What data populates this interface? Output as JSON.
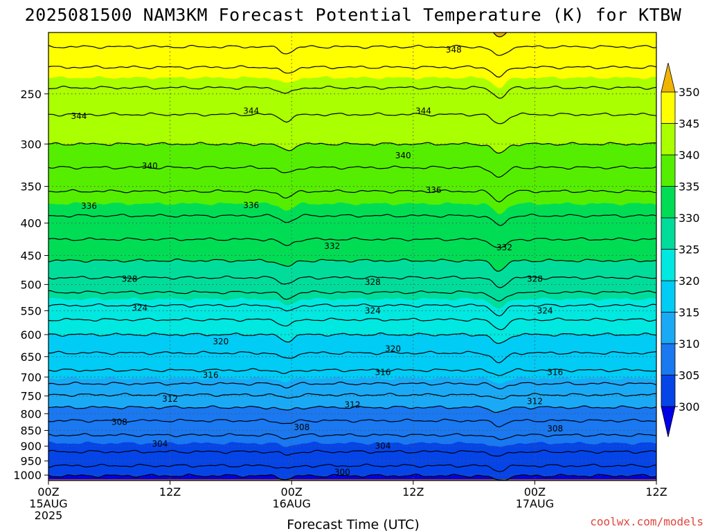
{
  "chart_data": {
    "type": "contour",
    "title": "2025081500 NAM3KM Forecast Potential Temperature (K) for KTBW",
    "xlabel": "Forecast Time (UTC)",
    "ylabel": "",
    "x_ticks": [
      {
        "hour": 0,
        "l1": "00Z",
        "l2": "15AUG",
        "l3": "2025"
      },
      {
        "hour": 12,
        "l1": "12Z",
        "l2": "",
        "l3": ""
      },
      {
        "hour": 24,
        "l1": "00Z",
        "l2": "16AUG",
        "l3": ""
      },
      {
        "hour": 36,
        "l1": "12Z",
        "l2": "",
        "l3": ""
      },
      {
        "hour": 48,
        "l1": "00Z",
        "l2": "17AUG",
        "l3": ""
      },
      {
        "hour": 60,
        "l1": "12Z",
        "l2": "",
        "l3": ""
      }
    ],
    "xlim_hours": [
      0,
      60
    ],
    "y_ticks": [
      250,
      300,
      350,
      400,
      450,
      500,
      550,
      600,
      650,
      700,
      750,
      800,
      850,
      900,
      950,
      1000
    ],
    "ylim_hpa": [
      200,
      1020
    ],
    "y_scale": "log",
    "grid": "dotted",
    "colorbar": {
      "levels": [
        300,
        305,
        310,
        315,
        320,
        325,
        330,
        335,
        340,
        345,
        350
      ],
      "colors": [
        "#0000e6",
        "#0545e8",
        "#1a78f0",
        "#1aaaf5",
        "#00ccf5",
        "#00e8e0",
        "#00dd9a",
        "#00dd55",
        "#55ee00",
        "#aaff00",
        "#ffff00",
        "#f0b400"
      ],
      "extend": "both"
    },
    "contour_interval": 2,
    "profile": [
      {
        "hpa": 1015,
        "theta": 299.0
      },
      {
        "hpa": 1000,
        "theta": 300.2
      },
      {
        "hpa": 975,
        "theta": 301.6
      },
      {
        "hpa": 950,
        "theta": 302.8
      },
      {
        "hpa": 925,
        "theta": 303.8
      },
      {
        "hpa": 900,
        "theta": 304.6
      },
      {
        "hpa": 850,
        "theta": 306.6
      },
      {
        "hpa": 800,
        "theta": 309.0
      },
      {
        "hpa": 750,
        "theta": 311.8
      },
      {
        "hpa": 700,
        "theta": 315.2
      },
      {
        "hpa": 650,
        "theta": 317.6
      },
      {
        "hpa": 600,
        "theta": 320.0
      },
      {
        "hpa": 550,
        "theta": 323.2
      },
      {
        "hpa": 500,
        "theta": 327.2
      },
      {
        "hpa": 450,
        "theta": 330.6
      },
      {
        "hpa": 400,
        "theta": 333.4
      },
      {
        "hpa": 350,
        "theta": 336.4
      },
      {
        "hpa": 300,
        "theta": 340.0
      },
      {
        "hpa": 250,
        "theta": 343.4
      },
      {
        "hpa": 200,
        "theta": 349.4
      }
    ],
    "contour_labels": [
      {
        "text": "348",
        "hour": 40,
        "hpa": 213
      },
      {
        "text": "344",
        "hour": 3,
        "hpa": 271
      },
      {
        "text": "344",
        "hour": 20,
        "hpa": 266
      },
      {
        "text": "344",
        "hour": 37,
        "hpa": 266
      },
      {
        "text": "340",
        "hour": 10,
        "hpa": 325
      },
      {
        "text": "340",
        "hour": 35,
        "hpa": 313
      },
      {
        "text": "336",
        "hour": 4,
        "hpa": 376
      },
      {
        "text": "336",
        "hour": 20,
        "hpa": 375
      },
      {
        "text": "336",
        "hour": 38,
        "hpa": 355
      },
      {
        "text": "332",
        "hour": 28,
        "hpa": 435
      },
      {
        "text": "332",
        "hour": 45,
        "hpa": 437
      },
      {
        "text": "328",
        "hour": 8,
        "hpa": 490
      },
      {
        "text": "328",
        "hour": 32,
        "hpa": 496
      },
      {
        "text": "328",
        "hour": 48,
        "hpa": 490
      },
      {
        "text": "324",
        "hour": 9,
        "hpa": 545
      },
      {
        "text": "324",
        "hour": 32,
        "hpa": 550
      },
      {
        "text": "324",
        "hour": 49,
        "hpa": 550
      },
      {
        "text": "320",
        "hour": 17,
        "hpa": 615
      },
      {
        "text": "320",
        "hour": 34,
        "hpa": 632
      },
      {
        "text": "316",
        "hour": 16,
        "hpa": 695
      },
      {
        "text": "316",
        "hour": 33,
        "hpa": 688
      },
      {
        "text": "316",
        "hour": 50,
        "hpa": 688
      },
      {
        "text": "312",
        "hour": 12,
        "hpa": 758
      },
      {
        "text": "312",
        "hour": 30,
        "hpa": 775
      },
      {
        "text": "312",
        "hour": 48,
        "hpa": 765
      },
      {
        "text": "308",
        "hour": 7,
        "hpa": 825
      },
      {
        "text": "308",
        "hour": 25,
        "hpa": 840
      },
      {
        "text": "308",
        "hour": 50,
        "hpa": 845
      },
      {
        "text": "304",
        "hour": 11,
        "hpa": 893
      },
      {
        "text": "304",
        "hour": 33,
        "hpa": 900
      },
      {
        "text": "300",
        "hour": 29,
        "hpa": 990
      }
    ],
    "ground_color": "#a85a32"
  },
  "credit": "coolwx.com/models"
}
